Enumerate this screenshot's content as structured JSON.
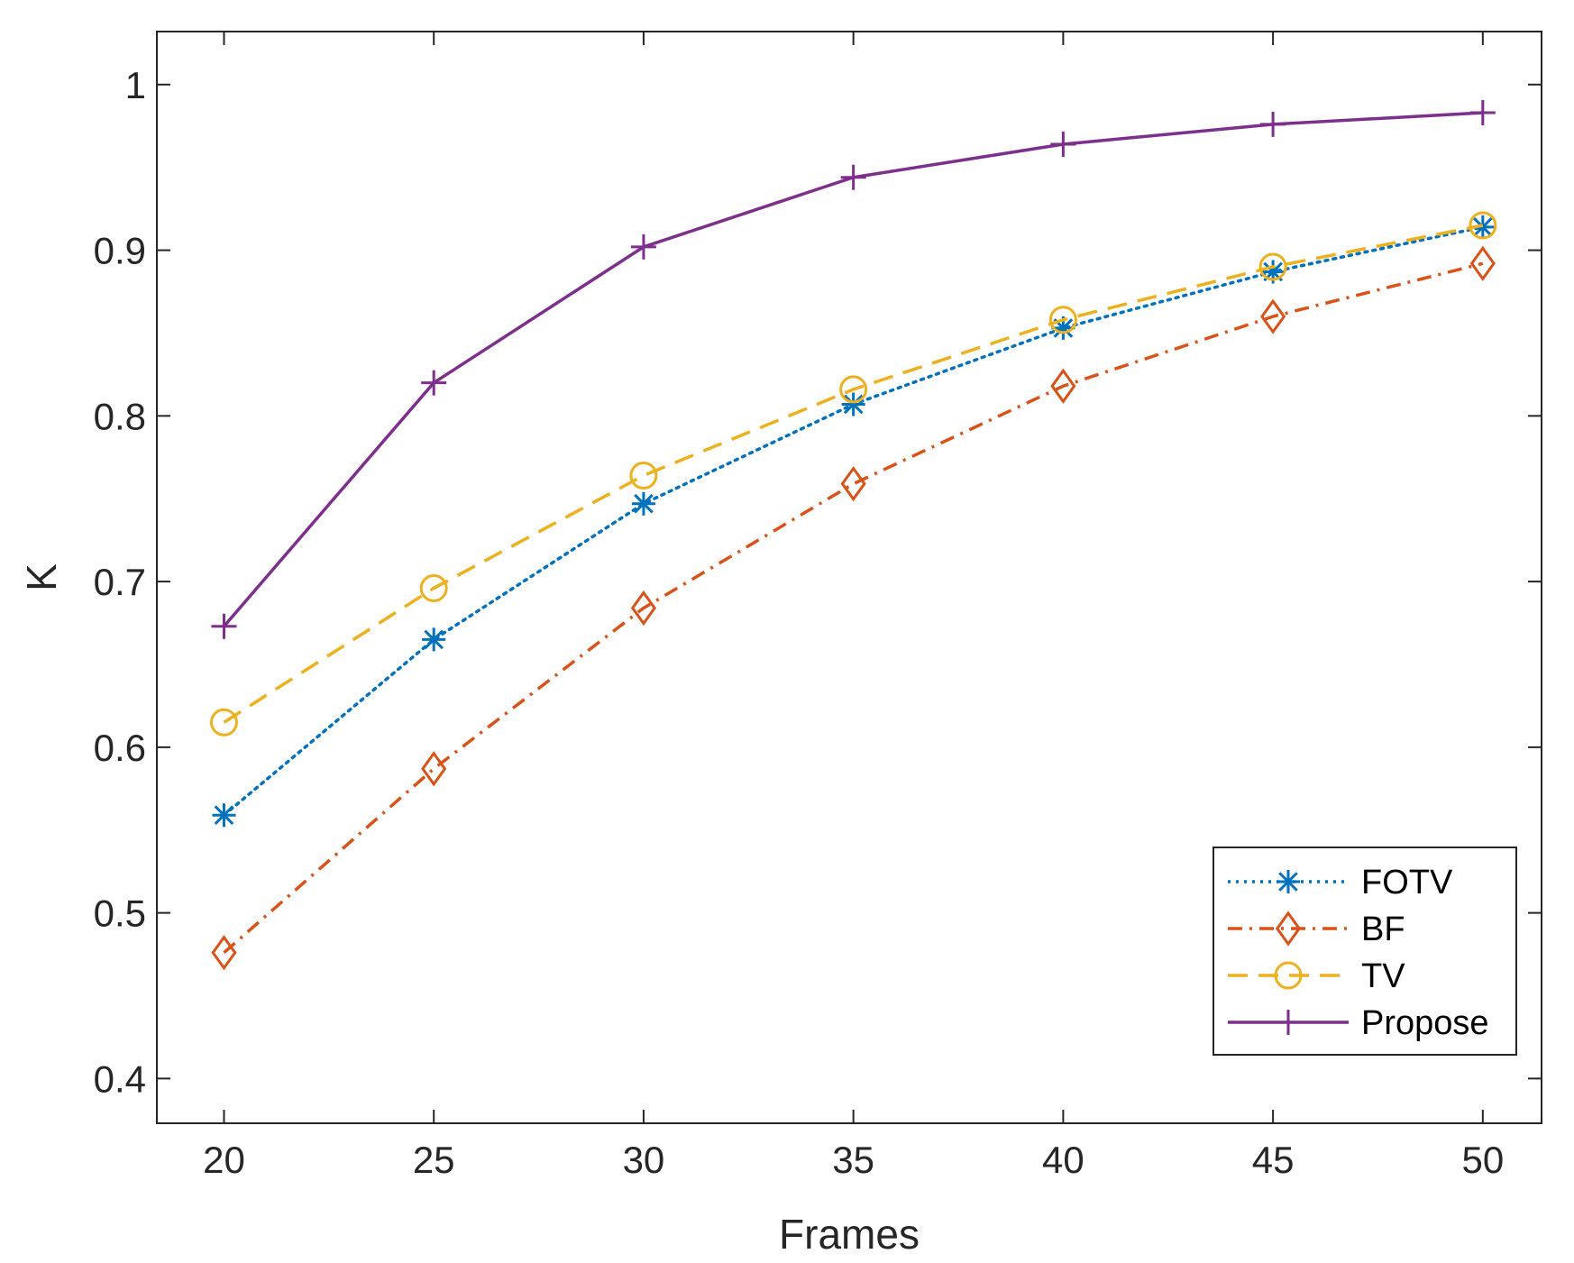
{
  "chart_data": {
    "type": "line",
    "title": "",
    "xlabel": "Frames",
    "ylabel": "K",
    "x": [
      20,
      25,
      30,
      35,
      40,
      45,
      50
    ],
    "xlim": [
      18.4,
      51.4
    ],
    "ylim": [
      0.373,
      1.032
    ],
    "xticks": [
      "20",
      "25",
      "30",
      "35",
      "40",
      "45",
      "50"
    ],
    "yticks": [
      "0.4",
      "0.5",
      "0.6",
      "0.7",
      "0.8",
      "0.9",
      "1"
    ],
    "ytick_values": [
      0.4,
      0.5,
      0.6,
      0.7,
      0.8,
      0.9,
      1.0
    ],
    "grid": false,
    "legend_position": "bottom-right",
    "series": [
      {
        "name": "FOTV",
        "values": [
          0.559,
          0.665,
          0.747,
          0.807,
          0.853,
          0.887,
          0.914
        ],
        "color": "#0072BD",
        "line": "dotted",
        "marker": "asterisk"
      },
      {
        "name": "BF",
        "values": [
          0.476,
          0.587,
          0.684,
          0.759,
          0.818,
          0.86,
          0.892
        ],
        "color": "#D95319",
        "line": "dashdot",
        "marker": "diamond"
      },
      {
        "name": "TV",
        "values": [
          0.615,
          0.696,
          0.764,
          0.816,
          0.858,
          0.89,
          0.915
        ],
        "color": "#EDB120",
        "line": "dashed",
        "marker": "circle"
      },
      {
        "name": "Propose",
        "values": [
          0.673,
          0.82,
          0.902,
          0.944,
          0.964,
          0.976,
          0.983
        ],
        "color": "#7E2F8E",
        "line": "solid",
        "marker": "plus"
      }
    ]
  }
}
